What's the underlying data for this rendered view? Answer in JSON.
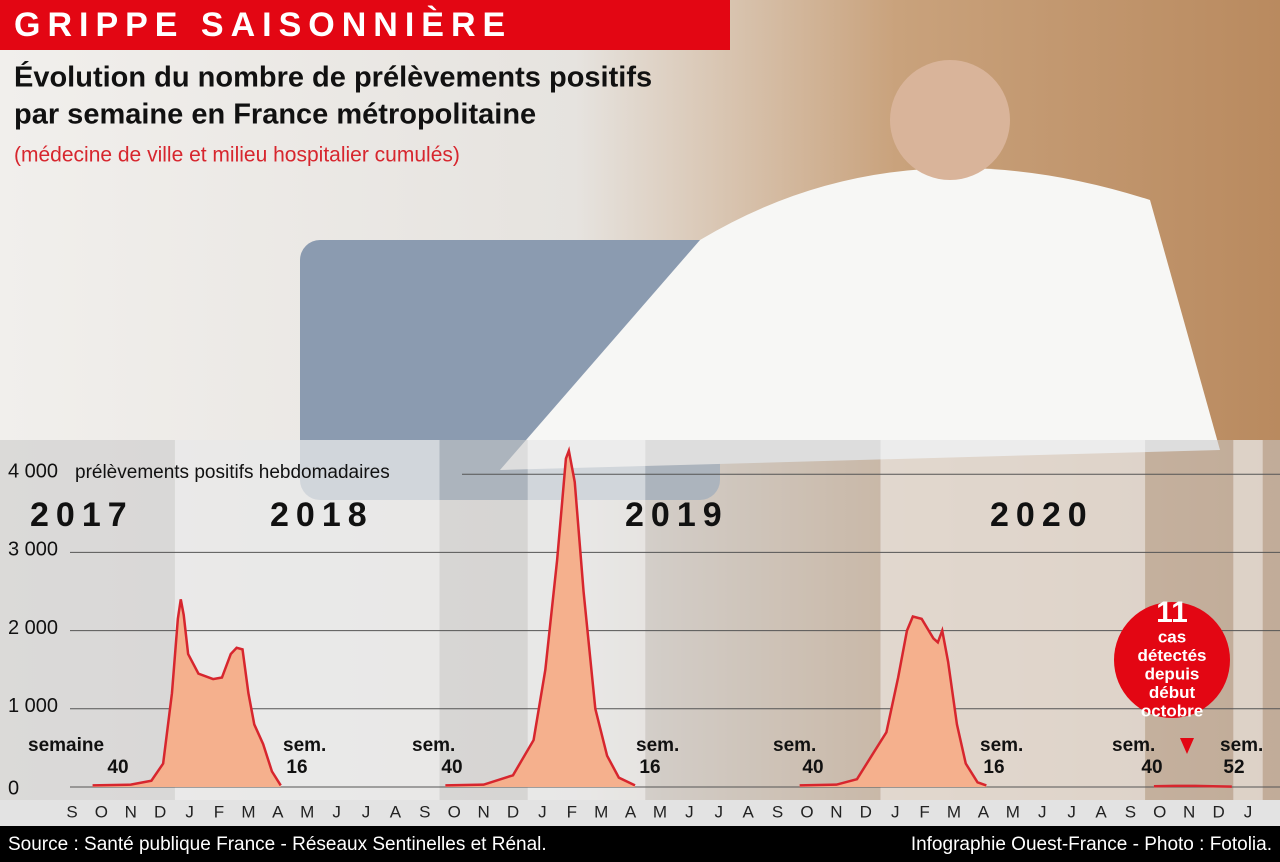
{
  "header": {
    "title": "GRIPPE SAISONNIÈRE",
    "subtitle_lines": [
      "Évolution du nombre de prélèvements positifs",
      "par semaine en France métropolitaine"
    ],
    "note": "(médecine de ville et milieu hospitalier cumulés)"
  },
  "chart_data": {
    "type": "area",
    "y_label": "prélèvements positifs hebdomadaires",
    "year_labels": [
      "2017",
      "2018",
      "2019",
      "2020"
    ],
    "week_labels": [
      [
        "semaine",
        "40"
      ],
      [
        "sem.",
        "16"
      ],
      [
        "sem.",
        "40"
      ],
      [
        "sem.",
        "16"
      ],
      [
        "sem.",
        "40"
      ],
      [
        "sem.",
        "16"
      ],
      [
        "sem.",
        "40"
      ],
      [
        "sem.",
        "52"
      ]
    ],
    "series": [
      {
        "name": "prélèvements positifs",
        "color": "#f5b08d",
        "line_color": "#d7262e",
        "x": [
          1.2,
          2.5,
          3.2,
          3.6,
          3.9,
          4.1,
          4.2,
          4.3,
          4.45,
          4.8,
          5.3,
          5.6,
          5.9,
          6.1,
          6.3,
          6.5,
          6.7,
          7.0,
          7.3,
          7.6,
          10,
          13.2,
          14.5,
          15.5,
          16.2,
          16.6,
          17.0,
          17.3,
          17.4,
          17.6,
          17.9,
          18.3,
          18.7,
          19.1,
          19.65,
          22,
          25.25,
          26.5,
          27.2,
          27.7,
          28.2,
          28.6,
          28.9,
          29.1,
          29.4,
          29.8,
          29.95,
          30.1,
          30.3,
          30.6,
          30.9,
          31.3,
          31.6,
          34,
          37.3,
          38,
          38.7,
          39.3,
          39.95
        ],
        "values": [
          20,
          30,
          80,
          300,
          1200,
          2150,
          2400,
          2200,
          1700,
          1450,
          1380,
          1400,
          1700,
          1780,
          1760,
          1200,
          800,
          550,
          200,
          20,
          null,
          20,
          30,
          150,
          600,
          1500,
          2900,
          4200,
          4300,
          3900,
          2500,
          1000,
          400,
          120,
          20,
          null,
          20,
          30,
          100,
          400,
          700,
          1400,
          2000,
          2180,
          2150,
          1900,
          1850,
          2000,
          1600,
          800,
          300,
          60,
          20,
          null,
          10,
          15,
          15,
          10,
          5
        ]
      }
    ],
    "xlim": [
      0,
      41
    ],
    "xticks": [
      {
        "value": 0.5,
        "label": "S"
      },
      {
        "value": 1.5,
        "label": "O"
      },
      {
        "value": 2.5,
        "label": "N"
      },
      {
        "value": 3.5,
        "label": "D"
      },
      {
        "value": 4.5,
        "label": "J"
      },
      {
        "value": 5.5,
        "label": "F"
      },
      {
        "value": 6.5,
        "label": "M"
      },
      {
        "value": 7.5,
        "label": "A"
      },
      {
        "value": 8.5,
        "label": "M"
      },
      {
        "value": 9.5,
        "label": "J"
      },
      {
        "value": 10.5,
        "label": "J"
      },
      {
        "value": 11.5,
        "label": "A"
      },
      {
        "value": 12.5,
        "label": "S"
      },
      {
        "value": 13.5,
        "label": "O"
      },
      {
        "value": 14.5,
        "label": "N"
      },
      {
        "value": 15.5,
        "label": "D"
      },
      {
        "value": 16.5,
        "label": "J"
      },
      {
        "value": 17.5,
        "label": "F"
      },
      {
        "value": 18.5,
        "label": "M"
      },
      {
        "value": 19.5,
        "label": "A"
      },
      {
        "value": 20.5,
        "label": "M"
      },
      {
        "value": 21.5,
        "label": "J"
      },
      {
        "value": 22.5,
        "label": "J"
      },
      {
        "value": 23.5,
        "label": "A"
      },
      {
        "value": 24.5,
        "label": "S"
      },
      {
        "value": 25.5,
        "label": "O"
      },
      {
        "value": 26.5,
        "label": "N"
      },
      {
        "value": 27.5,
        "label": "D"
      },
      {
        "value": 28.5,
        "label": "J"
      },
      {
        "value": 29.5,
        "label": "F"
      },
      {
        "value": 30.5,
        "label": "M"
      },
      {
        "value": 31.5,
        "label": "A"
      },
      {
        "value": 32.5,
        "label": "M"
      },
      {
        "value": 33.5,
        "label": "J"
      },
      {
        "value": 34.5,
        "label": "J"
      },
      {
        "value": 35.5,
        "label": "A"
      },
      {
        "value": 36.5,
        "label": "S"
      },
      {
        "value": 37.5,
        "label": "O"
      },
      {
        "value": 38.5,
        "label": "N"
      },
      {
        "value": 39.5,
        "label": "D"
      },
      {
        "value": 40.5,
        "label": "J"
      }
    ],
    "ylim": [
      0,
      4500
    ],
    "yticks": [
      0,
      {
        "value": 1000,
        "label": "1 000"
      },
      {
        "value": 2000,
        "label": "2 000"
      },
      {
        "value": 3000,
        "label": "3 000"
      },
      {
        "value": 4000,
        "label": "4 000"
      }
    ],
    "grid": true,
    "callout": {
      "number": 11,
      "lines": [
        "cas",
        "détectés",
        "depuis",
        "début",
        "octobre"
      ]
    }
  },
  "footer": {
    "source": "Source : Santé publique France - Réseaux Sentinelles et Rénal.",
    "credit": "Infographie Ouest-France - Photo : Fotolia."
  }
}
